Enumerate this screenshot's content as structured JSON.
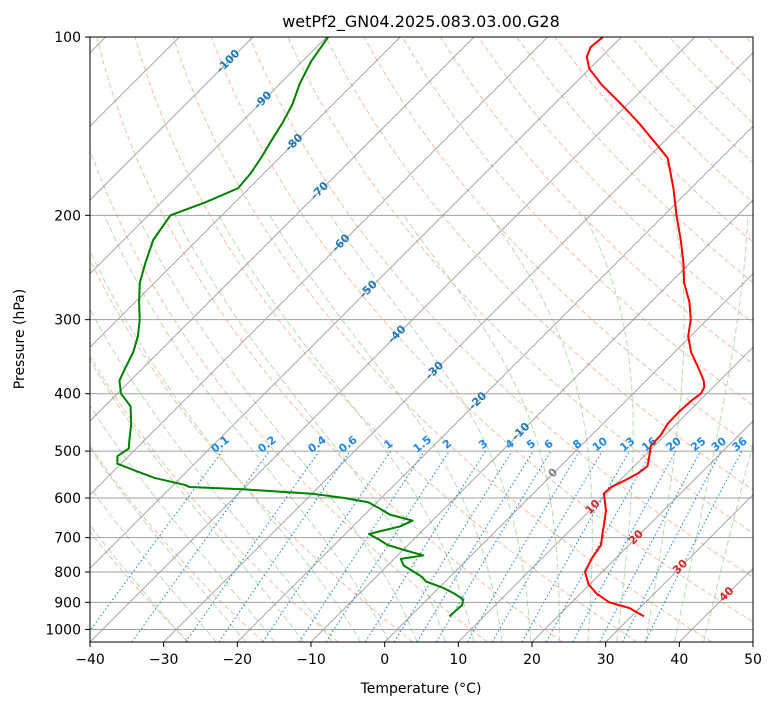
{
  "chart_data": {
    "type": "line",
    "title": "wetPf2_GN04.2025.083.03.00.G28",
    "xlabel": "Temperature (°C)",
    "ylabel": "Pressure (hPa)",
    "xlim": [
      -40,
      50
    ],
    "ylim": [
      1050,
      100
    ],
    "yscale": "log",
    "grid": true,
    "x_ticks": [
      "−40",
      "−30",
      "−20",
      "−10",
      "0",
      "10",
      "20",
      "30",
      "40",
      "50"
    ],
    "x_tick_values": [
      -40,
      -30,
      -20,
      -10,
      0,
      10,
      20,
      30,
      40,
      50
    ],
    "y_ticks": [
      "100",
      "200",
      "300",
      "400",
      "500",
      "600",
      "700",
      "800",
      "900",
      "1000"
    ],
    "y_tick_values": [
      100,
      200,
      300,
      400,
      500,
      600,
      700,
      800,
      900,
      1000
    ],
    "colors": {
      "temperature": "#ff0000",
      "dewpoint": "#008000",
      "mixing_ratio": "#1e88e5",
      "dry_adiabat": "#f4a582",
      "moist_adiabat": "#a8d5a2",
      "isotherm": "#808080",
      "isobar": "#a0a0a0"
    },
    "mixing_ratio_labels": [
      "0.1",
      "0.2",
      "0.4",
      "0.6",
      "1",
      "1.5",
      "2",
      "3",
      "4",
      "5",
      "6",
      "8",
      "10",
      "13",
      "16",
      "20",
      "25",
      "30",
      "36"
    ],
    "mixing_ratio_values": [
      0.1,
      0.2,
      0.4,
      0.6,
      1,
      1.5,
      2,
      3,
      4,
      5,
      6,
      8,
      10,
      13,
      16,
      20,
      25,
      30,
      36
    ],
    "isotherm_labels": [
      {
        "text": "-100",
        "t": -100,
        "p": 110,
        "class": "dry"
      },
      {
        "text": "-90",
        "t": -90,
        "p": 128,
        "class": "dry"
      },
      {
        "text": "-80",
        "t": -80,
        "p": 151,
        "class": "dry"
      },
      {
        "text": "-70",
        "t": -70,
        "p": 182,
        "class": "dry"
      },
      {
        "text": "-60",
        "t": -60,
        "p": 223,
        "class": "dry"
      },
      {
        "text": "-50",
        "t": -50,
        "p": 267,
        "class": "dry"
      },
      {
        "text": "-40",
        "t": -40,
        "p": 318,
        "class": "dry"
      },
      {
        "text": "-30",
        "t": -30,
        "p": 366,
        "class": "dry"
      },
      {
        "text": "-20",
        "t": -20,
        "p": 412,
        "class": "dry"
      },
      {
        "text": "-10",
        "t": -10,
        "p": 464,
        "class": "dry"
      },
      {
        "text": "0",
        "t": 0,
        "p": 545,
        "class": "zero"
      },
      {
        "text": "10",
        "t": 10,
        "p": 622,
        "class": "moist"
      },
      {
        "text": "20",
        "t": 20,
        "p": 700,
        "class": "moist"
      },
      {
        "text": "30",
        "t": 30,
        "p": 785,
        "class": "moist"
      },
      {
        "text": "40",
        "t": 40,
        "p": 873,
        "class": "moist"
      }
    ],
    "series": [
      {
        "name": "",
        "role": "temperature",
        "p": [
          950,
          920,
          900,
          870,
          840,
          800,
          760,
          720,
          690,
          660,
          630,
          600,
          590,
          575,
          560,
          545,
          530,
          510,
          490,
          470,
          450,
          430,
          410,
          400,
          390,
          380,
          370,
          355,
          340,
          320,
          300,
          280,
          260,
          240,
          220,
          200,
          180,
          160,
          150,
          140,
          130,
          120,
          113,
          108,
          104,
          100
        ],
        "t": [
          31.7,
          28.6,
          25.1,
          22.2,
          19.9,
          17.7,
          16.8,
          16.2,
          14.9,
          13.6,
          12.2,
          10.3,
          9.6,
          9.7,
          10.7,
          11.5,
          11.8,
          10.7,
          9.5,
          9.4,
          8.8,
          8.7,
          8.9,
          9.2,
          8.8,
          7.8,
          6.5,
          4.4,
          2.2,
          -0.3,
          -2.2,
          -4.8,
          -8.1,
          -11.0,
          -14.4,
          -18.3,
          -22.4,
          -27.3,
          -31.4,
          -35.8,
          -40.8,
          -46.4,
          -50.1,
          -52.0,
          -52.8,
          -52.5
        ]
      },
      {
        "name": "",
        "role": "dewpoint",
        "p": [
          950,
          930,
          910,
          890,
          870,
          850,
          830,
          815,
          800,
          780,
          760,
          750,
          735,
          720,
          705,
          690,
          670,
          655,
          640,
          625,
          610,
          600,
          590,
          580,
          575,
          570,
          555,
          540,
          525,
          510,
          495,
          480,
          450,
          420,
          400,
          380,
          360,
          340,
          320,
          300,
          280,
          260,
          240,
          220,
          200,
          190,
          180,
          170,
          160,
          150,
          140,
          130,
          120,
          110,
          100
        ],
        "t": [
          5.3,
          5.4,
          5.5,
          4.9,
          2.9,
          0.5,
          -2.6,
          -3.8,
          -5.5,
          -7.8,
          -9.1,
          -6.5,
          -9.7,
          -12.8,
          -14.7,
          -16.8,
          -13.6,
          -12.7,
          -16.6,
          -18.8,
          -21.2,
          -25.0,
          -30.0,
          -40.0,
          -47.5,
          -48.5,
          -53.5,
          -57.0,
          -60.5,
          -61.5,
          -61.0,
          -62.0,
          -64.0,
          -66.5,
          -69.5,
          -71.5,
          -72.5,
          -73.5,
          -75.0,
          -77.0,
          -79.5,
          -82.0,
          -84.0,
          -86.0,
          -87.0,
          -84.0,
          -81.5,
          -81.8,
          -82.5,
          -83.4,
          -84.3,
          -85.5,
          -87.3,
          -88.8,
          -89.8
        ]
      }
    ]
  }
}
